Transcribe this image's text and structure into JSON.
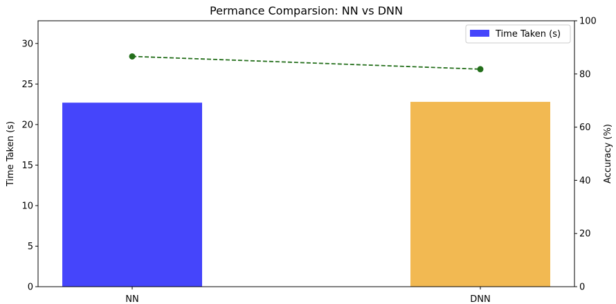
{
  "chart_data": {
    "type": "bar",
    "title": "Permance Comparsion: NN vs DNN",
    "categories": [
      "NN",
      "DNN"
    ],
    "series": [
      {
        "name": "Time Taken (s)",
        "axis": "left",
        "type": "bar",
        "values": [
          22.7,
          22.8
        ],
        "colors": [
          "#4545fb",
          "#f2b952"
        ]
      },
      {
        "axis": "right",
        "type": "line",
        "style": "dashed",
        "marker": "circle",
        "color": "#236e1a",
        "values": [
          86.6,
          81.8
        ]
      }
    ],
    "ylabel": "Time Taken (s)",
    "ylabel_right": "Accuracy (%)",
    "xlabel": "",
    "ylim": [
      0,
      32.8
    ],
    "ylim_right": [
      0,
      100
    ],
    "yticks": [
      0,
      5,
      10,
      15,
      20,
      25,
      30
    ],
    "yticks_right": [
      0,
      20,
      40,
      60,
      80,
      100
    ],
    "grid": false,
    "legend": {
      "position": "top-right",
      "entries": [
        "Time Taken (s)"
      ]
    }
  }
}
